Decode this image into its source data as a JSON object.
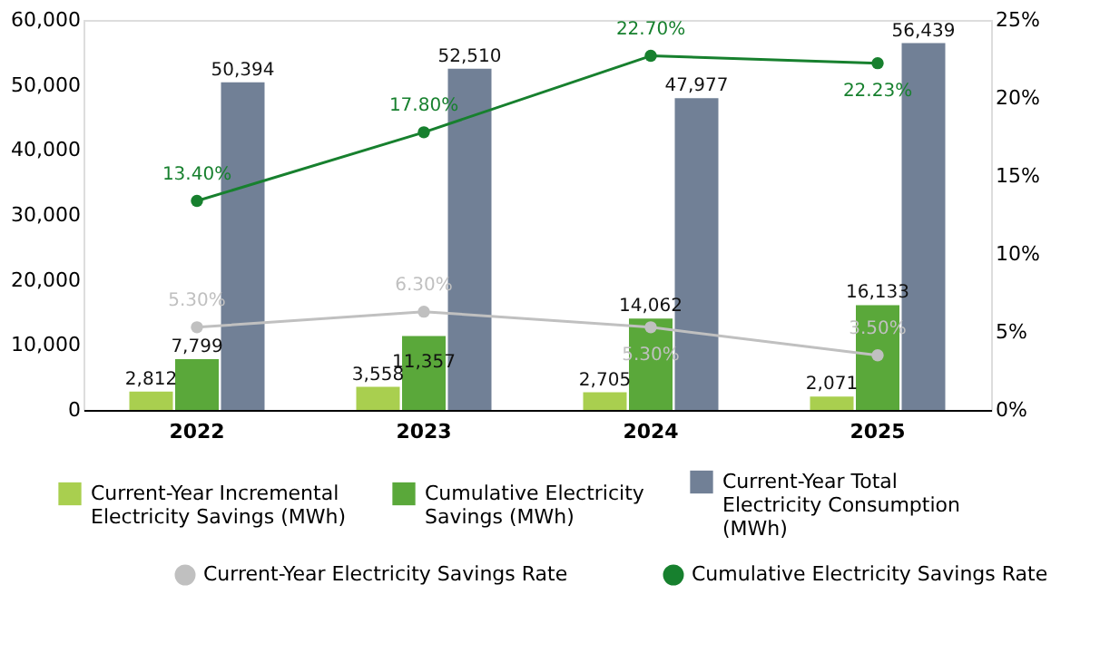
{
  "chart_data": {
    "type": "bar",
    "categories": [
      "2022",
      "2023",
      "2024",
      "2025"
    ],
    "series": [
      {
        "name": "Current-Year Incremental Electricity Savings (MWh)",
        "type": "bar",
        "color": "#a9cf4f",
        "values": [
          2812,
          3558,
          2705,
          2071
        ],
        "value_labels": [
          "2,812",
          "3,558",
          "2,705",
          "2,071"
        ]
      },
      {
        "name": "Cumulative Electricity Savings (MWh)",
        "type": "bar",
        "color": "#5aa83a",
        "values": [
          7799,
          11357,
          14062,
          16133
        ],
        "value_labels": [
          "7,799",
          "11,357",
          "14,062",
          "16,133"
        ]
      },
      {
        "name": "Current-Year Total Electricity Consumption (MWh)",
        "type": "bar",
        "color": "#718096",
        "values": [
          50394,
          52510,
          47977,
          56439
        ],
        "value_labels": [
          "50,394",
          "52,510",
          "47,977",
          "56,439"
        ]
      },
      {
        "name": "Current-Year Electricity Savings Rate",
        "type": "line",
        "axis": "y2",
        "color": "#c0c0c0",
        "values": [
          5.3,
          6.3,
          5.3,
          3.5
        ],
        "value_labels": [
          "5.30%",
          "6.30%",
          "5.30%",
          "3.50%"
        ]
      },
      {
        "name": "Cumulative Electricity Savings Rate",
        "type": "line",
        "axis": "y2",
        "color": "#17802e",
        "values": [
          13.4,
          17.8,
          22.7,
          22.23
        ],
        "value_labels": [
          "13.40%",
          "17.80%",
          "22.70%",
          "22.23%"
        ]
      }
    ],
    "ylim": [
      0,
      60000
    ],
    "yticks": [
      0,
      {
        "value": 10000,
        "label": "10,000"
      },
      {
        "value": 20000,
        "label": "20,000"
      },
      {
        "value": 30000,
        "label": "30,000"
      },
      {
        "value": 40000,
        "label": "40,000"
      },
      {
        "value": 50000,
        "label": "50,000"
      },
      {
        "value": 60000,
        "label": "60,000"
      }
    ],
    "y2lim": [
      0,
      25
    ],
    "y2ticks": [
      {
        "value": 0,
        "label": "0%"
      },
      {
        "value": 5,
        "label": "5%"
      },
      {
        "value": 10,
        "label": "10%"
      },
      {
        "value": 15,
        "label": "15%"
      },
      {
        "value": 20,
        "label": "20%"
      },
      {
        "value": 25,
        "label": "25%"
      }
    ],
    "grid": false,
    "legend": "bottom",
    "marker": "circle",
    "line_style": "solid"
  }
}
